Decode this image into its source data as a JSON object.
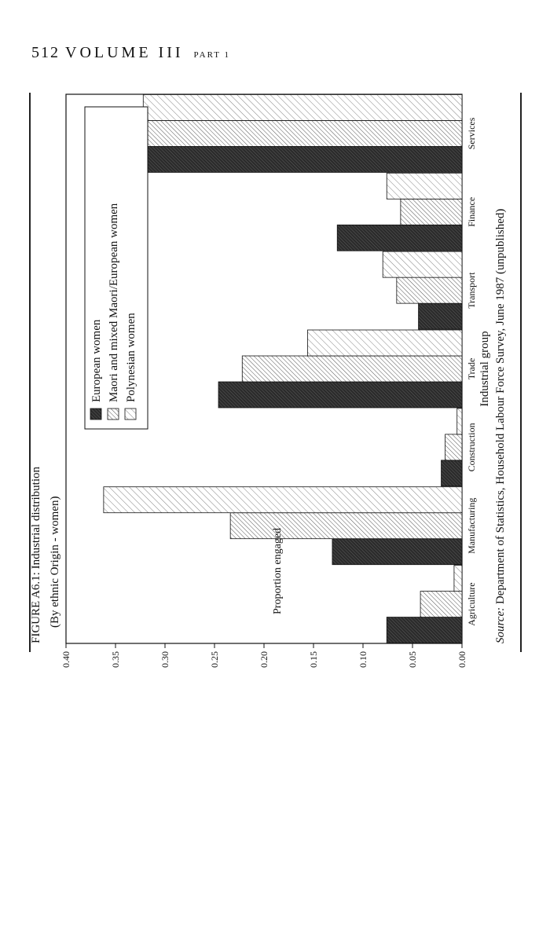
{
  "page": {
    "number": "512",
    "volume": "VOLUME III",
    "part": "PART 1"
  },
  "figure": {
    "title": "FIGURE A6.1: Industrial distribution",
    "subtitle": "(By ethnic Origin - women)",
    "source_label": "Source:",
    "source_text": "Department of Statistics, Household Labour Force Survey, June 1987 (unpublished)"
  },
  "chart_data": {
    "type": "bar",
    "title": "FIGURE A6.1: Industrial distribution",
    "subtitle": "(By ethnic Origin - women)",
    "xlabel": "Industrial group",
    "ylabel": "Proportion engaged",
    "categories": [
      "Agriculture",
      "Manufacturing",
      "Construction",
      "Trade",
      "Transport",
      "Finance",
      "Services"
    ],
    "ylim": [
      0,
      0.4
    ],
    "yticks": [
      "0.00",
      "0.05",
      "0.10",
      "0.15",
      "0.20",
      "0.25",
      "0.30",
      "0.35",
      "0.40"
    ],
    "grid": false,
    "legend_position": "top-right",
    "series": [
      {
        "name": "European women",
        "values": [
          0.076,
          0.131,
          0.021,
          0.246,
          0.044,
          0.126,
          0.352
        ],
        "fill": "dark"
      },
      {
        "name": "Maori and mixed Maori/European women",
        "values": [
          0.042,
          0.234,
          0.017,
          0.222,
          0.066,
          0.062,
          0.361
        ],
        "fill": "medium-hatch"
      },
      {
        "name": "Polynesian women",
        "values": [
          0.008,
          0.362,
          0.005,
          0.156,
          0.08,
          0.076,
          0.322
        ],
        "fill": "light-hatch"
      }
    ],
    "colors": {
      "dark": "#3a3a3a",
      "hatch": "#555555",
      "frame": "#111111"
    }
  }
}
